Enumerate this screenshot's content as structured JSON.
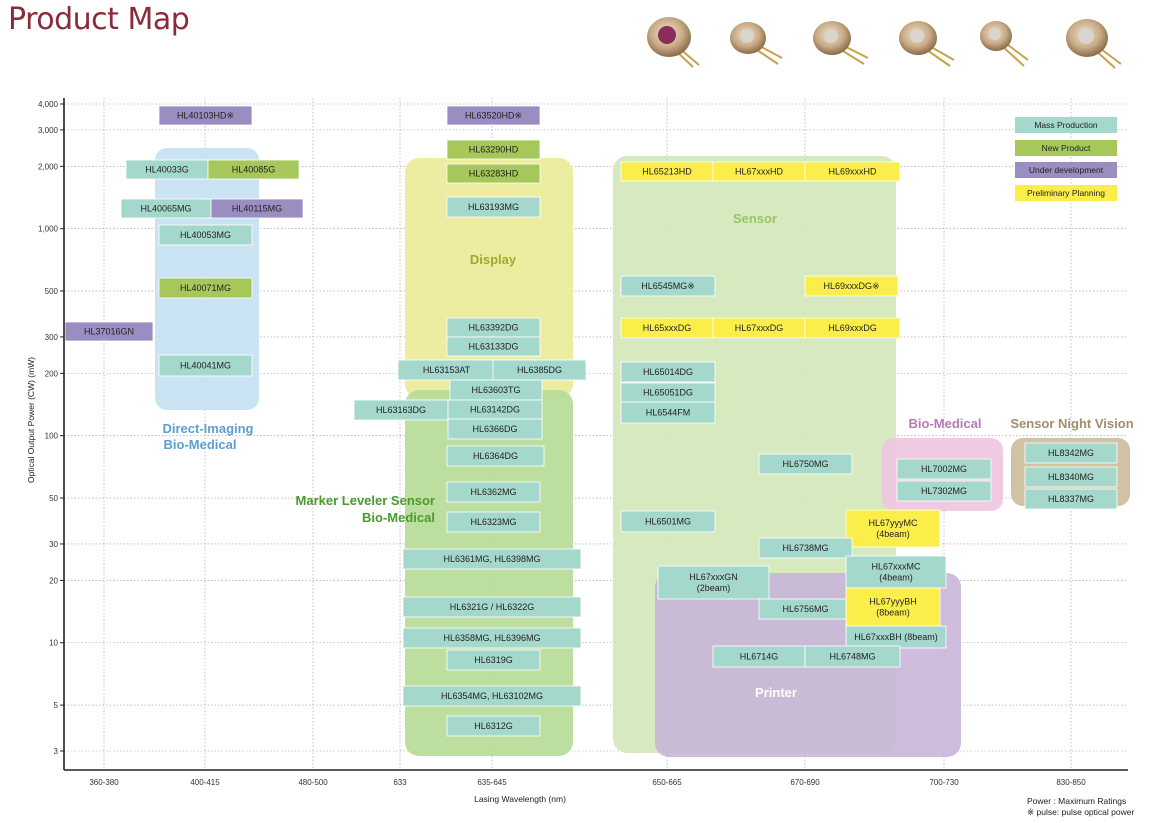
{
  "page_title": "Product Map",
  "chart_data": {
    "type": "product_map",
    "ylabel": "Optical Output Power (CW) (mW)",
    "xlabel": "Lasing Wavelength (nm)",
    "y_scale": "log",
    "ylim": [
      2.5,
      4500
    ],
    "y_ticks": [
      {
        "v": 4000,
        "t": "4,000"
      },
      {
        "v": 3000,
        "t": "3,000"
      },
      {
        "v": 2000,
        "t": "2,000"
      },
      {
        "v": 1000,
        "t": "1,000"
      },
      {
        "v": 500,
        "t": "500"
      },
      {
        "v": 300,
        "t": "300"
      },
      {
        "v": 200,
        "t": "200"
      },
      {
        "v": 100,
        "t": "100"
      },
      {
        "v": 50,
        "t": "50"
      },
      {
        "v": 30,
        "t": "30"
      },
      {
        "v": 20,
        "t": "20"
      },
      {
        "v": 10,
        "t": "10"
      },
      {
        "v": 5,
        "t": "5"
      },
      {
        "v": 3,
        "t": "3"
      }
    ],
    "x_categories": [
      "360-380",
      "400-415",
      "480-500",
      "633",
      "635-645",
      "650-665",
      "670-690",
      "700-730",
      "830-850"
    ],
    "regions": [
      {
        "name": "Direct-Imaging Bio-Medical",
        "lines": [
          "Direct-Imaging",
          "Bio-Medical"
        ],
        "color": "#c7e2f2",
        "text_color": "#5b9fd1"
      },
      {
        "name": "Display",
        "lines": [
          "Display"
        ],
        "color": "#ecec9c",
        "text_color": "#a3a82a"
      },
      {
        "name": "Marker Leveler Sensor Bio-Medical",
        "lines": [
          "Marker Leveler Sensor",
          "Bio-Medical"
        ],
        "color": "#b8dc9a",
        "text_color": "#4a9a2e"
      },
      {
        "name": "Sensor",
        "lines": [
          "Sensor"
        ],
        "color": "#d4e8bc",
        "text_color": "#9ac46a"
      },
      {
        "name": "Printer",
        "lines": [
          "Printer"
        ],
        "color": "#c7b2d8",
        "text_color": "#ffffff"
      },
      {
        "name": "Bio-Medical",
        "lines": [
          "Bio-Medical"
        ],
        "color": "#efc6e0",
        "text_color": "#b57ab8"
      },
      {
        "name": "Sensor Night Vision",
        "lines": [
          "Sensor Night Vision"
        ],
        "color": "#cfbf9e",
        "text_color": "#a28e6c"
      }
    ],
    "status_colors": {
      "mass": "#a4d8cc",
      "new": "#a6c85a",
      "dev": "#9a8dc2",
      "plan": "#fbee4a"
    },
    "products": [
      {
        "label": "HL40103HD※",
        "status": "dev"
      },
      {
        "label": "HL63520HD※",
        "status": "dev"
      },
      {
        "label": "HL63290HD",
        "status": "new"
      },
      {
        "label": "HL40033G",
        "status": "mass"
      },
      {
        "label": "HL40085G",
        "status": "new"
      },
      {
        "label": "HL63283HD",
        "status": "new"
      },
      {
        "label": "HL65213HD",
        "status": "plan"
      },
      {
        "label": "HL67xxxHD",
        "status": "plan"
      },
      {
        "label": "HL69xxxHD",
        "status": "plan"
      },
      {
        "label": "HL40065MG",
        "status": "mass"
      },
      {
        "label": "HL40115MG",
        "status": "dev"
      },
      {
        "label": "HL63193MG",
        "status": "mass"
      },
      {
        "label": "HL40053MG",
        "status": "mass"
      },
      {
        "label": "HL40071MG",
        "status": "new"
      },
      {
        "label": "HL6545MG※",
        "status": "mass"
      },
      {
        "label": "HL69xxxDG※",
        "status": "plan"
      },
      {
        "label": "HL37016GN",
        "status": "dev"
      },
      {
        "label": "HL63392DG",
        "status": "mass"
      },
      {
        "label": "HL65xxxDG",
        "status": "plan"
      },
      {
        "label": "HL67xxxDG",
        "status": "plan"
      },
      {
        "label": "HL69xxxDG",
        "status": "plan"
      },
      {
        "label": "HL63133DG",
        "status": "mass"
      },
      {
        "label": "HL40041MG",
        "status": "mass"
      },
      {
        "label": "HL63153AT",
        "status": "mass"
      },
      {
        "label": "HL6385DG",
        "status": "mass"
      },
      {
        "label": "HL65014DG",
        "status": "mass"
      },
      {
        "label": "HL63603TG",
        "status": "mass"
      },
      {
        "label": "HL65051DG",
        "status": "mass"
      },
      {
        "label": "HL63163DG",
        "status": "mass"
      },
      {
        "label": "HL63142DG",
        "status": "mass"
      },
      {
        "label": "HL6544FM",
        "status": "mass"
      },
      {
        "label": "HL6366DG",
        "status": "mass"
      },
      {
        "label": "HL6364DG",
        "status": "mass"
      },
      {
        "label": "HL6750MG",
        "status": "mass"
      },
      {
        "label": "HL7002MG",
        "status": "mass"
      },
      {
        "label": "HL8342MG",
        "status": "mass"
      },
      {
        "label": "HL8340MG",
        "status": "mass"
      },
      {
        "label": "HL6362MG",
        "status": "mass"
      },
      {
        "label": "HL7302MG",
        "status": "mass"
      },
      {
        "label": "HL8337MG",
        "status": "mass"
      },
      {
        "label": "HL6323MG",
        "status": "mass"
      },
      {
        "label": "HL6501MG",
        "status": "mass"
      },
      {
        "label": "HL67yyyMC\n(4beam)",
        "status": "plan"
      },
      {
        "label": "HL6738MG",
        "status": "mass"
      },
      {
        "label": "HL6361MG, HL6398MG",
        "status": "mass"
      },
      {
        "label": "HL67xxxGN\n(2beam)",
        "status": "mass"
      },
      {
        "label": "HL67xxxMC\n(4beam)",
        "status": "mass"
      },
      {
        "label": "HL6321G / HL6322G",
        "status": "mass"
      },
      {
        "label": "HL6756MG",
        "status": "mass"
      },
      {
        "label": "HL67yyyBH\n(8beam)",
        "status": "plan"
      },
      {
        "label": "HL6358MG, HL6396MG",
        "status": "mass"
      },
      {
        "label": "HL67xxxBH (8beam)",
        "status": "mass"
      },
      {
        "label": "HL6319G",
        "status": "mass"
      },
      {
        "label": "HL6714G",
        "status": "mass"
      },
      {
        "label": "HL6748MG",
        "status": "mass"
      },
      {
        "label": "HL6354MG, HL63102MG",
        "status": "mass"
      },
      {
        "label": "HL6312G",
        "status": "mass"
      }
    ],
    "legend": [
      {
        "label": "Mass Production",
        "status": "mass"
      },
      {
        "label": "New Product",
        "status": "new"
      },
      {
        "label": "Under development",
        "status": "dev"
      },
      {
        "label": "Preliminary Planning",
        "status": "plan"
      }
    ],
    "notes": [
      "Power   : Maximum Ratings",
      "※ pulse: pulse optical power"
    ]
  }
}
